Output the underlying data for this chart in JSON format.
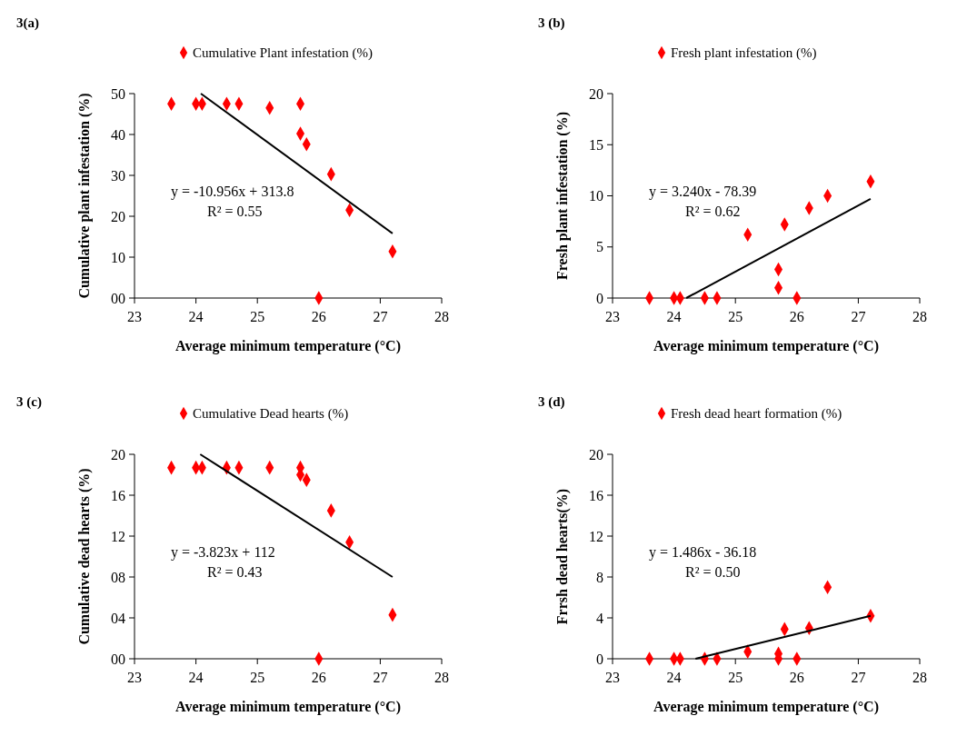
{
  "chart_data": [
    {
      "type": "scatter",
      "title": "3(a)",
      "xlabel": "Average minimum  temperature  (°C)",
      "ylabel": "Cumulative  plant  infestation  (%)",
      "legend": "top",
      "xlim": [
        23,
        28
      ],
      "xticks": [
        23,
        24,
        25,
        26,
        27,
        28
      ],
      "ylim": [
        0,
        50
      ],
      "yticks": [
        {
          "value": 0,
          "label": "00"
        },
        10,
        20,
        30,
        40,
        50
      ],
      "annotations": [
        "y = -10.956x + 313.8",
        "R² = 0.55"
      ],
      "series": [
        {
          "name": "Cumulative Plant infestation (%)",
          "marker": "diamond",
          "color": "#ff0000",
          "x": [
            23.6,
            24.0,
            24.1,
            24.5,
            24.7,
            25.2,
            25.7,
            25.7,
            25.8,
            26.0,
            26.2,
            26.5,
            27.2
          ],
          "values": [
            47.5,
            47.5,
            47.5,
            47.5,
            47.5,
            46.5,
            47.5,
            40.2,
            37.6,
            0,
            30.3,
            21.5,
            11.4
          ]
        },
        {
          "type": "line",
          "marker": "none",
          "line_style": "solid",
          "color": "#000000",
          "x": [
            24.08,
            27.2
          ],
          "values": [
            50.0,
            15.8
          ]
        }
      ]
    },
    {
      "type": "scatter",
      "title": "3 (b)",
      "xlabel": "Average minimum  temperature  (°C)",
      "ylabel": "Fresh plant infestation (%)",
      "legend": "top",
      "xlim": [
        23,
        28
      ],
      "xticks": [
        23,
        24,
        25,
        26,
        27,
        28
      ],
      "ylim": [
        0,
        20
      ],
      "yticks": [
        0,
        5,
        10,
        15,
        20
      ],
      "annotations": [
        "y = 3.240x - 78.39",
        "R² = 0.62"
      ],
      "series": [
        {
          "name": "Fresh plant infestation (%)",
          "marker": "diamond",
          "color": "#ff0000",
          "x": [
            23.6,
            24.0,
            24.1,
            24.5,
            24.7,
            25.2,
            25.7,
            25.7,
            25.8,
            26.0,
            26.2,
            26.5,
            27.2
          ],
          "values": [
            0,
            0,
            0,
            0,
            0,
            6.2,
            2.8,
            1.0,
            7.2,
            0,
            8.8,
            10.0,
            11.4
          ]
        },
        {
          "type": "line",
          "marker": "none",
          "line_style": "solid",
          "color": "#000000",
          "x": [
            24.2,
            27.2
          ],
          "values": [
            0,
            9.7
          ]
        }
      ]
    },
    {
      "type": "scatter",
      "title": "3 (c)",
      "xlabel": "Average minimum  temperature  (°C)",
      "ylabel": "Cumulative   dead hearts  (%)",
      "legend": "top",
      "xlim": [
        23,
        28
      ],
      "xticks": [
        23,
        24,
        25,
        26,
        27,
        28
      ],
      "ylim": [
        0,
        20
      ],
      "yticks": [
        {
          "value": 0,
          "label": "00"
        },
        {
          "value": 4,
          "label": "04"
        },
        {
          "value": 8,
          "label": "08"
        },
        12,
        16,
        20
      ],
      "annotations": [
        "y = -3.823x + 112",
        "R² = 0.43"
      ],
      "series": [
        {
          "name": "Cumulative Dead hearts  (%)",
          "marker": "diamond",
          "color": "#ff0000",
          "x": [
            23.6,
            24.0,
            24.1,
            24.5,
            24.7,
            25.2,
            25.7,
            25.7,
            25.8,
            26.0,
            26.2,
            26.5,
            27.2
          ],
          "values": [
            18.7,
            18.7,
            18.7,
            18.7,
            18.7,
            18.7,
            18.7,
            18.0,
            17.5,
            0,
            14.5,
            11.4,
            4.3
          ]
        },
        {
          "type": "line",
          "marker": "none",
          "line_style": "solid",
          "color": "#000000",
          "x": [
            24.07,
            27.2
          ],
          "values": [
            20.0,
            8.0
          ]
        }
      ]
    },
    {
      "type": "scatter",
      "title": "3 (d)",
      "xlabel": "Average minimum  temperature  (°C)",
      "ylabel": "Frrsh  dead hearts(%)",
      "legend": "top",
      "xlim": [
        23,
        28
      ],
      "xticks": [
        23,
        24,
        25,
        26,
        27,
        28
      ],
      "ylim": [
        0,
        20
      ],
      "yticks": [
        0,
        4,
        8,
        12,
        16,
        20
      ],
      "annotations": [
        "y = 1.486x - 36.18",
        "R² = 0.50"
      ],
      "series": [
        {
          "name": "Fresh dead heart formation (%)",
          "marker": "diamond",
          "color": "#ff0000",
          "x": [
            23.6,
            24.0,
            24.1,
            24.5,
            24.7,
            25.2,
            25.7,
            25.7,
            25.8,
            26.0,
            26.2,
            26.5,
            27.2
          ],
          "values": [
            0,
            0,
            0,
            0,
            0,
            0.7,
            0.5,
            0,
            2.9,
            0,
            3.0,
            7.0,
            4.2
          ]
        },
        {
          "type": "line",
          "marker": "none",
          "line_style": "solid",
          "color": "#000000",
          "x": [
            24.35,
            27.2
          ],
          "values": [
            0,
            4.2
          ]
        }
      ]
    }
  ]
}
